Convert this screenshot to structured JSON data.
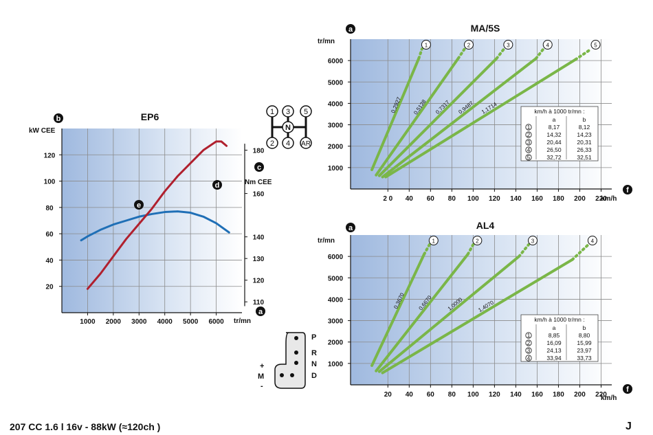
{
  "footer": {
    "model": "207 CC 1.6 l  16v - 88kW (≈120ch )",
    "page_letter": "J"
  },
  "markers": {
    "a": "a",
    "b": "b",
    "c": "c",
    "d": "d",
    "e": "e",
    "f": "f"
  },
  "gearbox_manual": {
    "gears": [
      "1",
      "3",
      "5",
      "2",
      "4",
      "AR"
    ],
    "neutral": "N"
  },
  "gearbox_auto": {
    "positions": [
      "P",
      "R",
      "N",
      "D"
    ],
    "manual_mode": [
      "+",
      "M",
      "-"
    ]
  },
  "colors": {
    "power": "#1f6fb6",
    "torque": "#b0202e",
    "gear_line": "#7ab648",
    "plot_bg_dark": "#9fb9df"
  },
  "chart_data": [
    {
      "id": "engine",
      "type": "line",
      "title": "EP6",
      "xlabel": "tr/mn",
      "ylabel": "kW CEE",
      "y2label": "Nm CEE",
      "xlim": [
        0,
        7000
      ],
      "ylim": [
        0,
        140
      ],
      "y2lim": [
        105,
        190
      ],
      "xticks": [
        1000,
        2000,
        3000,
        4000,
        5000,
        6000
      ],
      "yticks": [
        20,
        40,
        60,
        80,
        100,
        120
      ],
      "y2ticks": [
        110,
        120,
        130,
        140,
        160,
        180
      ],
      "grid": true,
      "series": [
        {
          "key": "e",
          "label": "e",
          "axis": "left",
          "color": "#1f6fb6",
          "x": [
            750,
            1000,
            1500,
            2000,
            2500,
            3000,
            3500,
            4000,
            4500,
            5000,
            5500,
            6000,
            6500
          ],
          "y": [
            55,
            58,
            63,
            67,
            70,
            73,
            75,
            76.5,
            77,
            76,
            73,
            68,
            61
          ]
        },
        {
          "key": "d",
          "label": "d",
          "axis": "right",
          "color": "#b0202e",
          "x": [
            1000,
            1500,
            2000,
            2500,
            3000,
            3500,
            4000,
            4500,
            5000,
            5500,
            6000,
            6200,
            6400
          ],
          "y": [
            116,
            123,
            131,
            139,
            146,
            153,
            161,
            168,
            174,
            180,
            184,
            184,
            182
          ]
        }
      ]
    },
    {
      "id": "manual",
      "type": "line",
      "title": "MA/5S",
      "xlabel": "km/h",
      "ylabel": "tr/mn",
      "xlim": [
        -15,
        230
      ],
      "ylim": [
        0,
        7000
      ],
      "xticks_labels": [
        "2 0",
        "40",
        "60",
        "80",
        "100",
        "120",
        "140",
        "160",
        "180",
        "200",
        "220"
      ],
      "xticks": [
        20,
        40,
        60,
        80,
        100,
        120,
        140,
        160,
        180,
        200,
        220
      ],
      "yticks": [
        1000,
        2000,
        3000,
        4000,
        5000,
        6000
      ],
      "grid": true,
      "series": [
        {
          "name": "1",
          "ratio_label": "0,2927",
          "x": [
            5,
            49
          ],
          "y": [
            900,
            6100
          ],
          "dotted_to": [
            52,
            6550
          ]
        },
        {
          "name": "2",
          "ratio_label": "0,5128",
          "x": [
            9,
            86
          ],
          "y": [
            650,
            6100
          ],
          "dotted_to": [
            92,
            6550
          ]
        },
        {
          "name": "3",
          "ratio_label": "0,7317",
          "x": [
            12,
            122
          ],
          "y": [
            620,
            6100
          ],
          "dotted_to": [
            129,
            6550
          ]
        },
        {
          "name": "4",
          "ratio_label": "0,9487",
          "x": [
            15,
            159
          ],
          "y": [
            560,
            6100
          ],
          "dotted_to": [
            166,
            6550
          ]
        },
        {
          "name": "5",
          "ratio_label": "1,1714",
          "x": [
            18,
            196
          ],
          "y": [
            560,
            6050
          ],
          "dotted_to": [
            211,
            6550
          ]
        }
      ],
      "table": {
        "title": "km/h à 1000 tr/mn :",
        "columns": [
          "",
          "a",
          "b"
        ],
        "rows": [
          [
            "1",
            "8,17",
            "8,12"
          ],
          [
            "2",
            "14,32",
            "14,23"
          ],
          [
            "3",
            "20,44",
            "20,31"
          ],
          [
            "4",
            "26,50",
            "26,33"
          ],
          [
            "5",
            "32,72",
            "32,51"
          ]
        ]
      }
    },
    {
      "id": "auto",
      "type": "line",
      "title": "AL4",
      "xlabel": "km/h",
      "ylabel": "tr/mn",
      "xlim": [
        -15,
        230
      ],
      "ylim": [
        0,
        7000
      ],
      "xticks": [
        20,
        40,
        60,
        80,
        100,
        120,
        140,
        160,
        180,
        200,
        220
      ],
      "yticks": [
        1000,
        2000,
        3000,
        4000,
        5000,
        6000
      ],
      "grid": true,
      "series": [
        {
          "name": "1",
          "ratio_label": "0,3670",
          "x": [
            5,
            54
          ],
          "y": [
            900,
            6100
          ],
          "dotted_to": [
            59,
            6550
          ]
        },
        {
          "name": "2",
          "ratio_label": "0,6670",
          "x": [
            9,
            95
          ],
          "y": [
            650,
            6100
          ],
          "dotted_to": [
            100,
            6550
          ]
        },
        {
          "name": "3",
          "ratio_label": "1,0000",
          "x": [
            12,
            143
          ],
          "y": [
            620,
            6000
          ],
          "dotted_to": [
            152,
            6550
          ]
        },
        {
          "name": "4",
          "ratio_label": "1,4070",
          "x": [
            15,
            193
          ],
          "y": [
            560,
            5850
          ],
          "dotted_to": [
            208,
            6550
          ]
        }
      ],
      "table": {
        "title": "km/h à 1000 tr/mn :",
        "columns": [
          "",
          "a",
          "b"
        ],
        "rows": [
          [
            "1",
            "8,85",
            "8,80"
          ],
          [
            "2",
            "16,09",
            "15,99"
          ],
          [
            "3",
            "24,13",
            "23,97"
          ],
          [
            "4",
            "33,94",
            "33,73"
          ]
        ]
      }
    }
  ]
}
